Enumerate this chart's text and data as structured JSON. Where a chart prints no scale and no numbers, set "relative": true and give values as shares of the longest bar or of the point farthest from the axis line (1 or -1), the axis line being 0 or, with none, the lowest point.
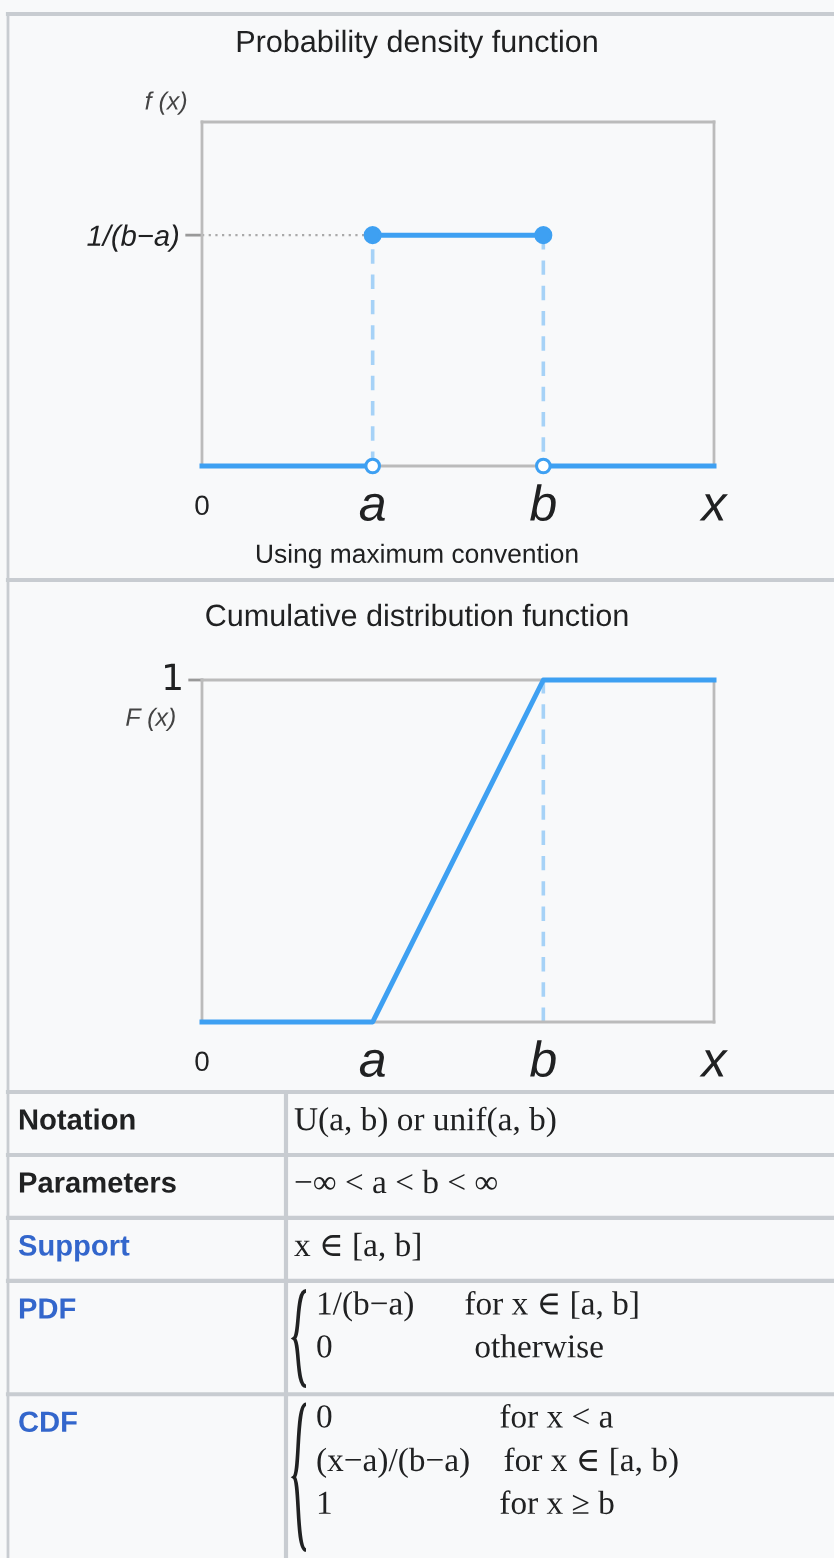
{
  "chart_data": [
    {
      "type": "line",
      "title": "Probability density function",
      "ylabel": "f (x)",
      "relative": true,
      "categories": [
        "0",
        "a",
        "b",
        "x"
      ],
      "ref_lines": [
        {
          "axis": "y",
          "value": 1,
          "label": "1/(b−a)",
          "color": "#aaaaaa",
          "line_style": "dotted"
        }
      ],
      "annotations": [
        "Using maximum convention"
      ],
      "series": [
        {
          "type": "line",
          "values": [
            0,
            0,
            null,
            null
          ],
          "color": "#3ea0f2",
          "marker": "none"
        },
        {
          "type": "line",
          "values": [
            null,
            null,
            0,
            0
          ],
          "color": "#3ea0f2",
          "marker": "none"
        },
        {
          "type": "line",
          "values": [
            null,
            1,
            1,
            null
          ],
          "color": "#3ea0f2",
          "marker": "circle"
        },
        {
          "type": "line",
          "x": [
            "a",
            "a",
            "a",
            "b",
            "b"
          ],
          "values": [
            0,
            1,
            null,
            1,
            0
          ],
          "color": "#a6d2f7",
          "line_style": "dashed",
          "marker": "none"
        },
        {
          "type": "scatter",
          "values": [
            null,
            0,
            0,
            null
          ],
          "color": "#3ea0f2",
          "marker": "circle"
        }
      ]
    },
    {
      "type": "line",
      "title": "Cumulative distribution function",
      "ylabel": "F (x)",
      "relative": true,
      "categories": [
        "0",
        "a",
        "b",
        "x"
      ],
      "annotations": [
        "1"
      ],
      "series": [
        {
          "type": "line",
          "values": [
            0,
            0,
            1,
            1
          ],
          "color": "#3ea0f2",
          "marker": "none"
        },
        {
          "type": "line",
          "x": [
            "b",
            "b"
          ],
          "values": [
            0,
            1
          ],
          "color": "#a6d2f7",
          "line_style": "dashed",
          "marker": "none"
        }
      ]
    },
    {
      "type": "other",
      "categories": [
        "Notation",
        "Parameters",
        "Support",
        "PDF",
        "CDF"
      ],
      "colors": [
        "#202122",
        "#202122",
        "#3366cc",
        "#3366cc",
        "#3366cc"
      ],
      "annotations": [
        "U(a, b) or unif(a, b)",
        "−∞ < a < b < ∞",
        "x ∈ [a, b]",
        "1/(b−a)      for x ∈ [a, b]\n0                 otherwise",
        "0                    for x < a\n(x−a)/(b−a)    for x ∈ [a, b)\n1                    for x ≥ b"
      ]
    }
  ]
}
